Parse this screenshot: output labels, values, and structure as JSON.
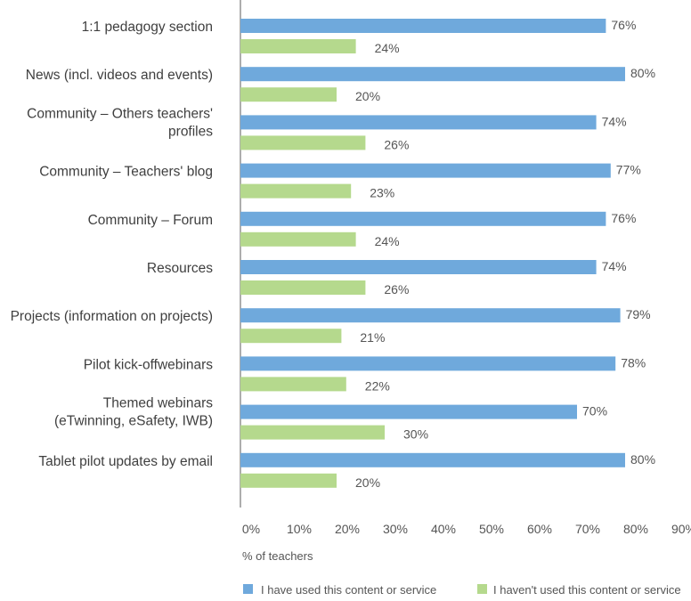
{
  "chart_data": {
    "type": "bar",
    "orientation": "horizontal",
    "categories": [
      [
        "1:1 pedagogy section"
      ],
      [
        "News (incl. videos and events)"
      ],
      [
        "Community – Others teachers'",
        "profiles"
      ],
      [
        "Community – Teachers' blog"
      ],
      [
        "Community – Forum"
      ],
      [
        "Resources"
      ],
      [
        "Projects (information on projects)"
      ],
      [
        "Pilot kick-offwebinars"
      ],
      [
        "Themed webinars",
        "(eTwinning, eSafety, IWB)"
      ],
      [
        "Tablet pilot updates by email"
      ]
    ],
    "series": [
      {
        "name": "I have used this content or service",
        "color": "#6fa9dc",
        "values": [
          76,
          80,
          74,
          77,
          76,
          74,
          79,
          78,
          70,
          80
        ],
        "labels": [
          "76%",
          "80%",
          "74%",
          "77%",
          "76%",
          "74%",
          "79%",
          "78%",
          "70%",
          "80%"
        ]
      },
      {
        "name": "I haven't used this content or service",
        "color": "#b5d98d",
        "values": [
          24,
          20,
          26,
          23,
          24,
          26,
          21,
          22,
          30,
          20
        ],
        "labels": [
          "24%",
          "20%",
          "26%",
          "23%",
          "24%",
          "26%",
          "21%",
          "22%",
          "30%",
          "20%"
        ]
      }
    ],
    "xlim": [
      0,
      90
    ],
    "xticks": [
      "0%",
      "10%",
      "20%",
      "30%",
      "40%",
      "50%",
      "60%",
      "70%",
      "80%",
      "90%"
    ],
    "xlabel": "% of teachers",
    "ylabel": "",
    "title": "",
    "grid": false,
    "legend": "bottom"
  }
}
